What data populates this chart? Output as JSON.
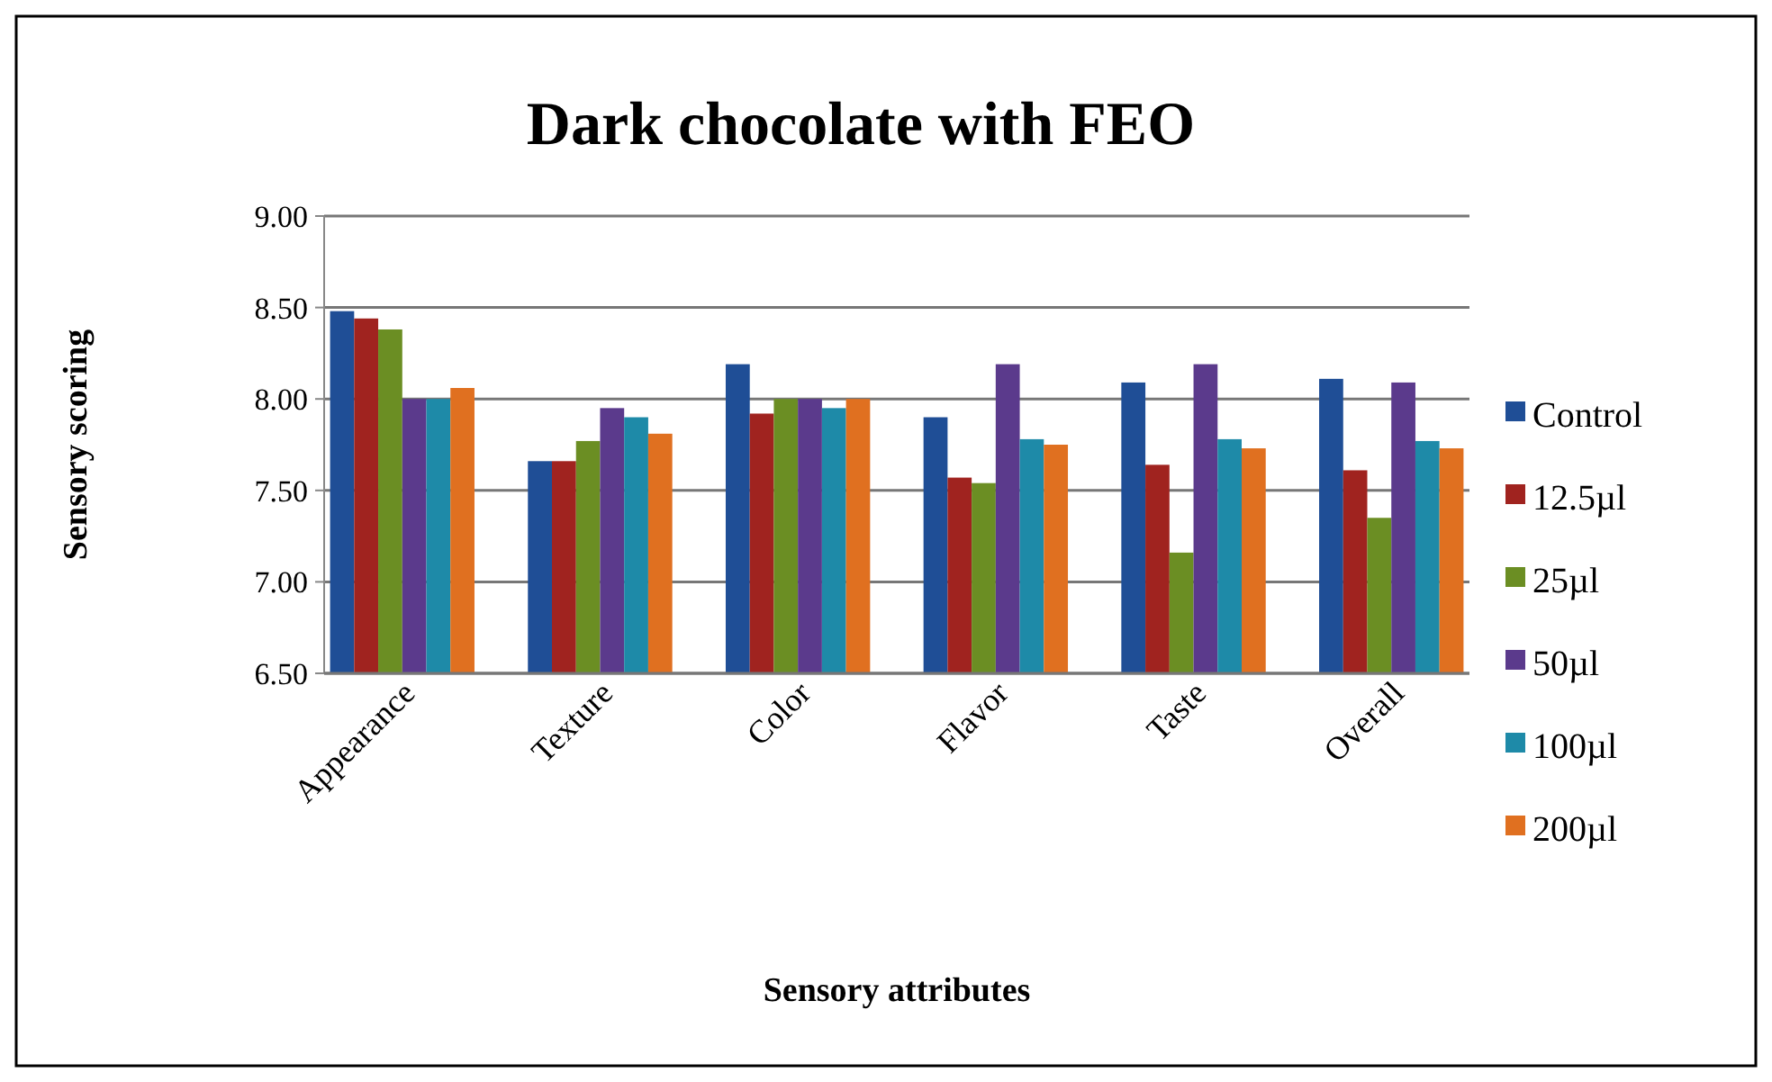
{
  "chart_data": {
    "type": "bar",
    "title": "Dark chocolate with FEO",
    "xlabel": "Sensory attributes",
    "ylabel": "Sensory scoring",
    "categories": [
      "Appearance",
      "Texture",
      "Color",
      "Flavor",
      "Taste",
      "Overall"
    ],
    "series": [
      {
        "name": "Control",
        "color": "#1f4e96",
        "values": [
          8.48,
          7.66,
          8.19,
          7.9,
          8.09,
          8.11
        ]
      },
      {
        "name": "12.5µl",
        "color": "#a0231f",
        "values": [
          8.44,
          7.66,
          7.92,
          7.57,
          7.64,
          7.61
        ]
      },
      {
        "name": "25µl",
        "color": "#6b8e23",
        "values": [
          8.38,
          7.77,
          8.0,
          7.54,
          7.16,
          7.35
        ]
      },
      {
        "name": "50µl",
        "color": "#5b3a8c",
        "values": [
          8.0,
          7.95,
          8.0,
          8.19,
          8.19,
          8.09
        ]
      },
      {
        "name": "100µl",
        "color": "#1e8aa8",
        "values": [
          8.0,
          7.9,
          7.95,
          7.78,
          7.78,
          7.77
        ]
      },
      {
        "name": "200µl",
        "color": "#e07020",
        "values": [
          8.06,
          7.81,
          8.0,
          7.75,
          7.73,
          7.73
        ]
      }
    ],
    "ylim": [
      6.5,
      9
    ],
    "yticks": [
      {
        "value": 6.5,
        "label": "6.50"
      },
      {
        "value": 7,
        "label": "7.00"
      },
      {
        "value": 7.5,
        "label": "7.50"
      },
      {
        "value": 8,
        "label": "8.00"
      },
      {
        "value": 8.5,
        "label": "8.50"
      },
      {
        "value": 9,
        "label": "9.00"
      }
    ],
    "grid": "y",
    "legend": "right"
  }
}
